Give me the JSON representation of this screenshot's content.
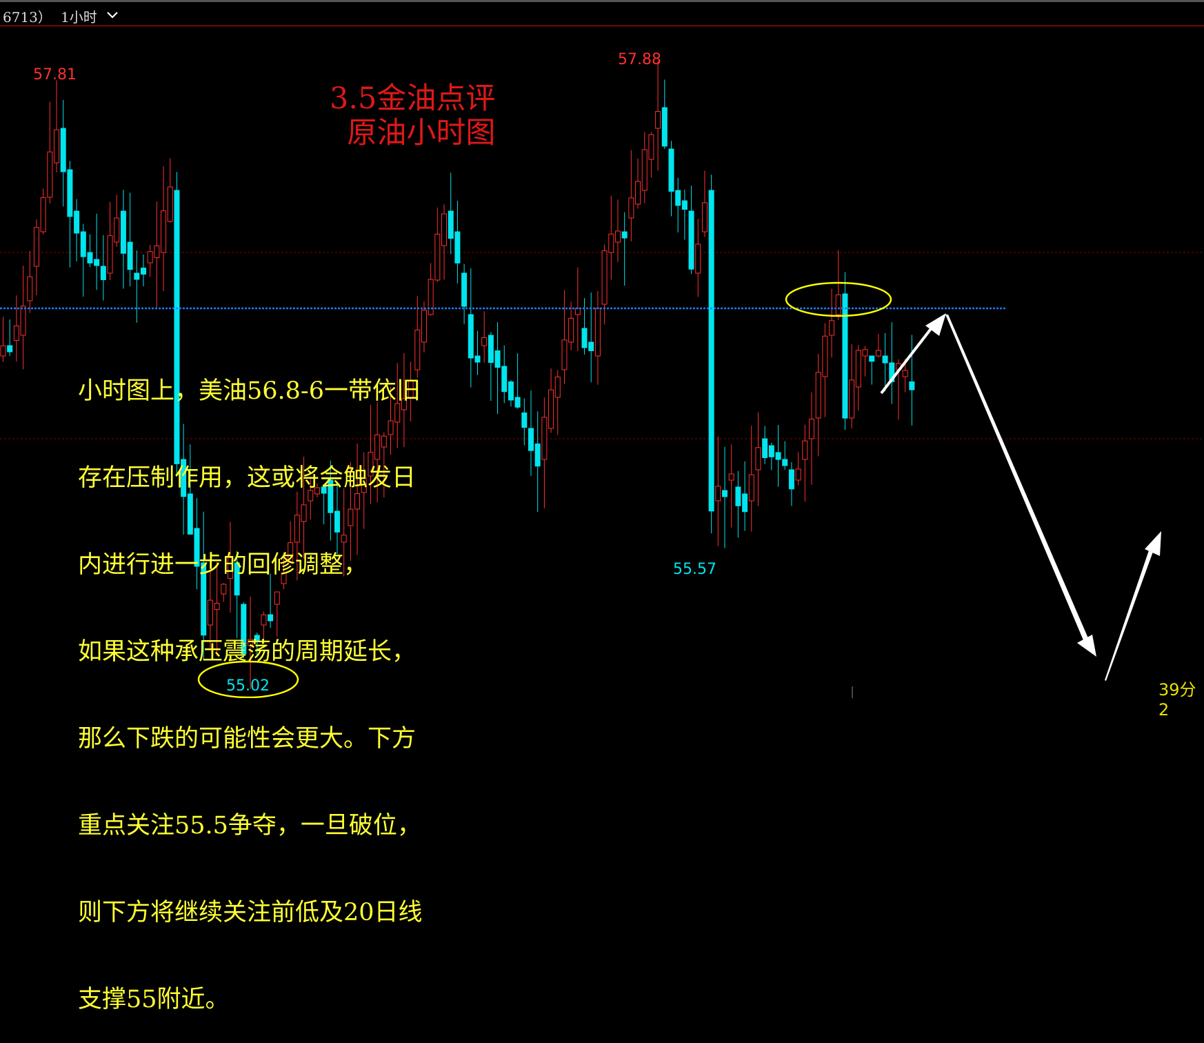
{
  "header": {
    "symbol_code": "6713）",
    "period": "1小时",
    "dropdown_icon": "chevron-down-icon"
  },
  "colors": {
    "up": "#ff3030",
    "down": "#00e5ee",
    "resistance_line": "#1e7bff",
    "grid_dashed": "#8b0000",
    "annotation": "#ffff33",
    "title": "#e01818",
    "marker": "#ffff00",
    "arrow": "#ffffff"
  },
  "labels": {
    "high_left": "57.81",
    "high_mid": "57.88",
    "low_left": "55.02",
    "low_mid": "55.57"
  },
  "title": {
    "line1": "3.5金油点评",
    "line2": "原油小时图"
  },
  "annotation": [
    "小时图上，美油56.8-6一带依旧",
    "存在压制作用，这或将会触发日",
    "内进行进一步的回修调整，",
    "如果这种承压震荡的周期延长，",
    "那么下跌的可能性会更大。下方",
    "重点关注55.5争夺，一旦破位，",
    "则下方将继续关注前低及20日线",
    "支撑55附近。"
  ],
  "footer": {
    "countdown": "39分2"
  },
  "chart_data": {
    "type": "candlestick",
    "resistance_level": 56.73,
    "dashed_levels": [
      57.0,
      56.1
    ],
    "price_path": [
      [
        0,
        56.55
      ],
      [
        2,
        56.6
      ],
      [
        5,
        57.1
      ],
      [
        8,
        57.6
      ],
      [
        10,
        57.2
      ],
      [
        12,
        57.0
      ],
      [
        15,
        56.9
      ],
      [
        17,
        57.2
      ],
      [
        19,
        56.9
      ],
      [
        23,
        57.0
      ],
      [
        25,
        57.3
      ],
      [
        26,
        56.0
      ],
      [
        29,
        55.5
      ],
      [
        30,
        55.2
      ],
      [
        34,
        55.5
      ],
      [
        36,
        55.1
      ],
      [
        40,
        55.3
      ],
      [
        45,
        55.8
      ],
      [
        48,
        55.9
      ],
      [
        50,
        55.6
      ],
      [
        55,
        56.0
      ],
      [
        60,
        56.3
      ],
      [
        63,
        56.7
      ],
      [
        66,
        57.2
      ],
      [
        67,
        57.1
      ],
      [
        70,
        56.5
      ],
      [
        72,
        56.6
      ],
      [
        76,
        56.3
      ],
      [
        80,
        56.0
      ],
      [
        82,
        56.3
      ],
      [
        85,
        56.7
      ],
      [
        88,
        56.5
      ],
      [
        90,
        57.0
      ],
      [
        92,
        57.1
      ],
      [
        95,
        57.3
      ],
      [
        97,
        57.6
      ],
      [
        98,
        57.7
      ],
      [
        100,
        57.3
      ],
      [
        102,
        57.2
      ],
      [
        103,
        56.9
      ],
      [
        105,
        57.3
      ],
      [
        106,
        55.8
      ],
      [
        108,
        55.9
      ],
      [
        111,
        55.8
      ],
      [
        113,
        56.1
      ],
      [
        116,
        56.0
      ],
      [
        118,
        55.9
      ],
      [
        121,
        56.2
      ],
      [
        123,
        56.6
      ],
      [
        125,
        56.8
      ],
      [
        126,
        56.2
      ],
      [
        128,
        56.5
      ],
      [
        131,
        56.5
      ],
      [
        134,
        56.4
      ],
      [
        136,
        56.35
      ]
    ]
  }
}
